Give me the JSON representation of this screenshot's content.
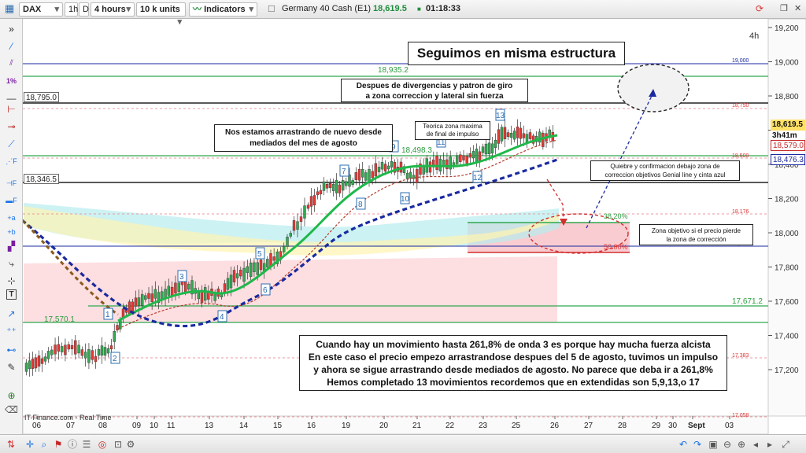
{
  "toolbar": {
    "symbol": "DAX",
    "tf_1h": "1h",
    "tf_d": "D",
    "timeframe": "4 hours",
    "units": "10 k units",
    "indicators": "Indicators",
    "instrument": "Germany 40 Cash (E1)",
    "last_price": "18,619.5",
    "clock": "01:18:33"
  },
  "chart_label": {
    "timeframe_corner": "4h",
    "footer_source": "IT-Finance.com - Real Time"
  },
  "price_axis": {
    "ticks": [
      "19,200",
      "19,000",
      "18,800",
      "18,600",
      "18,400",
      "18,200",
      "18,000",
      "17,800",
      "17,600",
      "17,400",
      "17,200"
    ],
    "tick_values": [
      19200,
      19000,
      18800,
      18600,
      18400,
      18200,
      18000,
      17800,
      17600,
      17400,
      17200
    ],
    "tags": {
      "last": "18,619.5",
      "countdown": "3h41m",
      "ma1": "18,579.0",
      "ma2": "18,476.3"
    }
  },
  "time_axis": {
    "labels": [
      "06",
      "07",
      "08",
      "09",
      "10",
      "11",
      "13",
      "14",
      "15",
      "16",
      "19",
      "20",
      "21",
      "22",
      "23",
      "25",
      "26",
      "27",
      "28",
      "29",
      "30",
      "Sept",
      "03"
    ]
  },
  "horizontal_lines": {
    "h_18795": "18,795.0",
    "h_18346": "18,346.5",
    "h_17570": "17,570.1",
    "h_18935": "18,935.2",
    "h_18498": "18,498.3",
    "h_17671": "17,671.2",
    "r_19000": "19,000",
    "r_18750": "18,750",
    "r_18500": "18,500",
    "r_18176": "18,176",
    "r_18000": "18,000",
    "r_17383": "17,383",
    "r_17058": "17,058",
    "fib_382": "38.20%",
    "fib_500": "50.00%"
  },
  "wave_labels": [
    "1",
    "2",
    "3",
    "4",
    "5",
    "6",
    "7",
    "8",
    "9",
    "10",
    "11",
    "12",
    "13"
  ],
  "annotations": {
    "title": "Seguimos en misma estructura",
    "divergence": "Despues de divergencias y patron de giro\na zona correccion y lateral sin fuerza",
    "dragging": "Nos estamos arrastrando de nuevo desde\nmediados del mes de agosto",
    "max_zone": "Teorica zona maxima\nde final de impulso",
    "break_below": "Quiebre y confirmacion debajo zona de\ncorreccion objetivos Genial line y cinta azul",
    "target_zone": "Zona objetivo si el precio pierde\nla zona de corrección",
    "summary": "Cuando hay un movimiento hasta 261,8% de onda 3 es porque hay mucha fuerza alcista\nEn este caso el precio empezo arrastrandose despues del 5 de agosto, tuvimos un impulso\ny ahora se sigue arrastrando desde mediados de agosto. No parece que deba ir a 261,8%\nHemos completado 13 movimientos recordemos que en extendidas son 5,9,13,o 17"
  },
  "colors": {
    "bull": "#34a853",
    "bear": "#e53935",
    "genial_line": "#1fb84a",
    "blue_band": "#1a2aa0",
    "fib_zone": "#f8c7cc"
  }
}
